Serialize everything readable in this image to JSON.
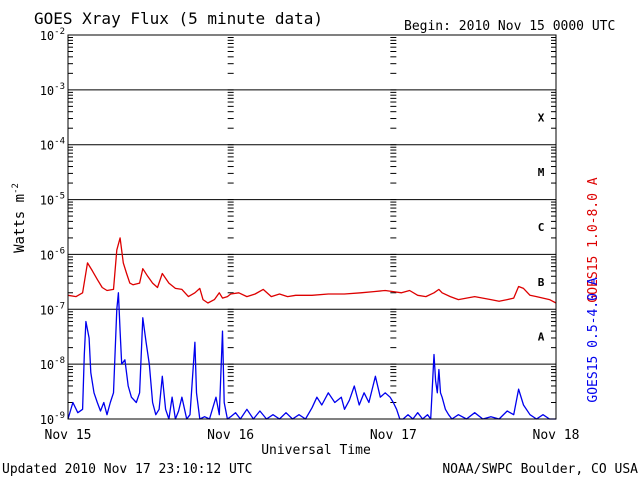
{
  "chart_data": {
    "type": "line",
    "title": "GOES Xray Flux (5 minute data)",
    "begin_label": "Begin:  2010 Nov 15 0000 UTC",
    "xlabel": "Universal Time",
    "ylabel_main": "Watts m",
    "ylabel_exp": "-2",
    "y_scale": "log",
    "ylim": [
      1e-09,
      0.01
    ],
    "xlim_days": [
      0,
      3
    ],
    "grid": true,
    "x_ticks": [
      {
        "day": 0,
        "label": "Nov 15"
      },
      {
        "day": 1,
        "label": "Nov 16"
      },
      {
        "day": 2,
        "label": "Nov 17"
      },
      {
        "day": 3,
        "label": "Nov 18"
      }
    ],
    "y_ticks": [
      {
        "exp": -2,
        "label": "-2"
      },
      {
        "exp": -3,
        "label": "-3"
      },
      {
        "exp": -4,
        "label": "-4"
      },
      {
        "exp": -5,
        "label": "-5"
      },
      {
        "exp": -6,
        "label": "-6"
      },
      {
        "exp": -7,
        "label": "-7"
      },
      {
        "exp": -8,
        "label": "-8"
      },
      {
        "exp": -9,
        "label": "-9"
      }
    ],
    "flare_classes": [
      {
        "label": "X",
        "exp": -3.5
      },
      {
        "label": "M",
        "exp": -4.5
      },
      {
        "label": "C",
        "exp": -5.5
      },
      {
        "label": "B",
        "exp": -6.5
      },
      {
        "label": "A",
        "exp": -7.5
      }
    ],
    "series": [
      {
        "name": "GOES15 1.0-8.0 A",
        "color": "#dd0000",
        "points": [
          [
            0.0,
            1.8e-07
          ],
          [
            0.05,
            1.7e-07
          ],
          [
            0.09,
            2e-07
          ],
          [
            0.12,
            7e-07
          ],
          [
            0.15,
            5e-07
          ],
          [
            0.18,
            3.5e-07
          ],
          [
            0.21,
            2.5e-07
          ],
          [
            0.24,
            2.2e-07
          ],
          [
            0.28,
            2.3e-07
          ],
          [
            0.3,
            1.2e-06
          ],
          [
            0.32,
            2e-06
          ],
          [
            0.34,
            7e-07
          ],
          [
            0.36,
            4.5e-07
          ],
          [
            0.38,
            3e-07
          ],
          [
            0.4,
            2.8e-07
          ],
          [
            0.44,
            3e-07
          ],
          [
            0.46,
            5.5e-07
          ],
          [
            0.49,
            4e-07
          ],
          [
            0.52,
            3e-07
          ],
          [
            0.55,
            2.5e-07
          ],
          [
            0.58,
            4.5e-07
          ],
          [
            0.62,
            3e-07
          ],
          [
            0.66,
            2.4e-07
          ],
          [
            0.7,
            2.3e-07
          ],
          [
            0.74,
            1.7e-07
          ],
          [
            0.78,
            2e-07
          ],
          [
            0.81,
            2.4e-07
          ],
          [
            0.83,
            1.5e-07
          ],
          [
            0.86,
            1.3e-07
          ],
          [
            0.9,
            1.5e-07
          ],
          [
            0.93,
            2e-07
          ],
          [
            0.95,
            1.6e-07
          ],
          [
            0.98,
            1.7e-07
          ],
          [
            1.0,
            1.9e-07
          ],
          [
            1.05,
            2e-07
          ],
          [
            1.1,
            1.7e-07
          ],
          [
            1.15,
            1.9e-07
          ],
          [
            1.2,
            2.3e-07
          ],
          [
            1.25,
            1.7e-07
          ],
          [
            1.3,
            1.9e-07
          ],
          [
            1.35,
            1.7e-07
          ],
          [
            1.4,
            1.8e-07
          ],
          [
            1.5,
            1.8e-07
          ],
          [
            1.6,
            1.9e-07
          ],
          [
            1.7,
            1.9e-07
          ],
          [
            1.8,
            2e-07
          ],
          [
            1.88,
            2.1e-07
          ],
          [
            1.95,
            2.2e-07
          ],
          [
            2.0,
            2.1e-07
          ],
          [
            2.05,
            2e-07
          ],
          [
            2.1,
            2.2e-07
          ],
          [
            2.15,
            1.8e-07
          ],
          [
            2.2,
            1.7e-07
          ],
          [
            2.25,
            2e-07
          ],
          [
            2.28,
            2.3e-07
          ],
          [
            2.3,
            2e-07
          ],
          [
            2.35,
            1.7e-07
          ],
          [
            2.4,
            1.5e-07
          ],
          [
            2.45,
            1.6e-07
          ],
          [
            2.5,
            1.7e-07
          ],
          [
            2.55,
            1.6e-07
          ],
          [
            2.6,
            1.5e-07
          ],
          [
            2.65,
            1.4e-07
          ],
          [
            2.7,
            1.5e-07
          ],
          [
            2.74,
            1.6e-07
          ],
          [
            2.77,
            2.6e-07
          ],
          [
            2.8,
            2.4e-07
          ],
          [
            2.84,
            1.8e-07
          ],
          [
            2.88,
            1.7e-07
          ],
          [
            2.92,
            1.6e-07
          ],
          [
            2.96,
            1.5e-07
          ],
          [
            3.0,
            1.3e-07
          ]
        ]
      },
      {
        "name": "GOES15 0.5-4.0 A",
        "color": "#0000ee",
        "points": [
          [
            0.0,
            1e-09
          ],
          [
            0.03,
            2e-09
          ],
          [
            0.06,
            1.3e-09
          ],
          [
            0.09,
            1.5e-09
          ],
          [
            0.1,
            1.5e-08
          ],
          [
            0.11,
            6e-08
          ],
          [
            0.13,
            3e-08
          ],
          [
            0.14,
            7e-09
          ],
          [
            0.16,
            3e-09
          ],
          [
            0.18,
            2e-09
          ],
          [
            0.2,
            1.4e-09
          ],
          [
            0.22,
            2e-09
          ],
          [
            0.24,
            1.2e-09
          ],
          [
            0.26,
            2e-09
          ],
          [
            0.28,
            3e-09
          ],
          [
            0.3,
            1e-07
          ],
          [
            0.31,
            2e-07
          ],
          [
            0.32,
            4e-08
          ],
          [
            0.33,
            1e-08
          ],
          [
            0.35,
            1.2e-08
          ],
          [
            0.37,
            4e-09
          ],
          [
            0.39,
            2.5e-09
          ],
          [
            0.42,
            2e-09
          ],
          [
            0.44,
            3e-09
          ],
          [
            0.46,
            7e-08
          ],
          [
            0.48,
            2.5e-08
          ],
          [
            0.5,
            1e-08
          ],
          [
            0.52,
            2e-09
          ],
          [
            0.54,
            1.2e-09
          ],
          [
            0.56,
            1.5e-09
          ],
          [
            0.58,
            6e-09
          ],
          [
            0.6,
            1.5e-09
          ],
          [
            0.62,
            1e-09
          ],
          [
            0.64,
            2.5e-09
          ],
          [
            0.66,
            1e-09
          ],
          [
            0.68,
            1.4e-09
          ],
          [
            0.7,
            2.5e-09
          ],
          [
            0.73,
            1e-09
          ],
          [
            0.75,
            1.2e-09
          ],
          [
            0.78,
            2.5e-08
          ],
          [
            0.79,
            3e-09
          ],
          [
            0.81,
            1e-09
          ],
          [
            0.84,
            1.1e-09
          ],
          [
            0.87,
            1e-09
          ],
          [
            0.89,
            1.6e-09
          ],
          [
            0.91,
            2.5e-09
          ],
          [
            0.93,
            1.2e-09
          ],
          [
            0.95,
            4e-08
          ],
          [
            0.96,
            2e-09
          ],
          [
            0.98,
            1e-09
          ],
          [
            1.0,
            1.1e-09
          ],
          [
            1.03,
            1.3e-09
          ],
          [
            1.06,
            1e-09
          ],
          [
            1.1,
            1.5e-09
          ],
          [
            1.14,
            1e-09
          ],
          [
            1.18,
            1.4e-09
          ],
          [
            1.22,
            1e-09
          ],
          [
            1.26,
            1.2e-09
          ],
          [
            1.3,
            1e-09
          ],
          [
            1.34,
            1.3e-09
          ],
          [
            1.38,
            1e-09
          ],
          [
            1.42,
            1.2e-09
          ],
          [
            1.46,
            1e-09
          ],
          [
            1.5,
            1.6e-09
          ],
          [
            1.53,
            2.5e-09
          ],
          [
            1.56,
            1.8e-09
          ],
          [
            1.6,
            3e-09
          ],
          [
            1.64,
            2e-09
          ],
          [
            1.68,
            2.5e-09
          ],
          [
            1.7,
            1.5e-09
          ],
          [
            1.73,
            2.2e-09
          ],
          [
            1.76,
            4e-09
          ],
          [
            1.79,
            1.8e-09
          ],
          [
            1.82,
            3e-09
          ],
          [
            1.85,
            2e-09
          ],
          [
            1.89,
            6e-09
          ],
          [
            1.92,
            2.5e-09
          ],
          [
            1.95,
            3e-09
          ],
          [
            1.98,
            2.5e-09
          ],
          [
            2.0,
            2e-09
          ],
          [
            2.02,
            1.5e-09
          ],
          [
            2.04,
            1e-09
          ],
          [
            2.06,
            1e-09
          ],
          [
            2.09,
            1.2e-09
          ],
          [
            2.12,
            1e-09
          ],
          [
            2.15,
            1.3e-09
          ],
          [
            2.18,
            1e-09
          ],
          [
            2.21,
            1.2e-09
          ],
          [
            2.23,
            1e-09
          ],
          [
            2.25,
            1.5e-08
          ],
          [
            2.26,
            5e-09
          ],
          [
            2.27,
            3e-09
          ],
          [
            2.28,
            8e-09
          ],
          [
            2.29,
            3e-09
          ],
          [
            2.3,
            2.5e-09
          ],
          [
            2.32,
            1.5e-09
          ],
          [
            2.34,
            1.2e-09
          ],
          [
            2.36,
            1e-09
          ],
          [
            2.4,
            1.2e-09
          ],
          [
            2.45,
            1e-09
          ],
          [
            2.5,
            1.3e-09
          ],
          [
            2.55,
            1e-09
          ],
          [
            2.6,
            1.1e-09
          ],
          [
            2.65,
            1e-09
          ],
          [
            2.7,
            1.4e-09
          ],
          [
            2.74,
            1.2e-09
          ],
          [
            2.77,
            3.5e-09
          ],
          [
            2.8,
            1.8e-09
          ],
          [
            2.84,
            1.2e-09
          ],
          [
            2.88,
            1e-09
          ],
          [
            2.92,
            1.2e-09
          ],
          [
            2.96,
            1e-09
          ],
          [
            3.0,
            1e-09
          ]
        ]
      }
    ],
    "footer_left": "Updated 2010 Nov 17 23:10:12 UTC",
    "footer_right": "NOAA/SWPC Boulder, CO USA"
  }
}
